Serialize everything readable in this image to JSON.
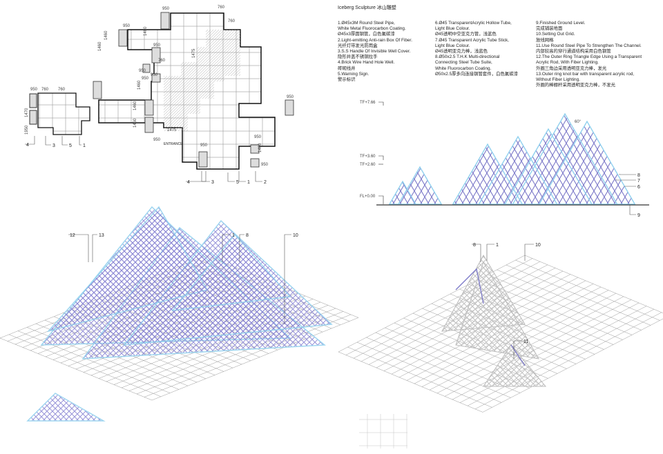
{
  "title": "Iceberg Sculpture  冰山雕塑",
  "legend_columns": [
    [
      "1.Ø45x3M Round Steel Pipe,",
      "White Metal Fluorocarbon Coating.",
      "Ø45x3厚圆钢管，白色氟碳漆",
      "2.Light-emitting Anti-rain Box Of Fiber.",
      "光纤灯带发光防雨盒",
      "3.S.S Handle Of Invisible Well Cover.",
      "隐形井盖不锈钢拉手",
      "4.Brick Wire Hand Hole Well.",
      "砖砌线井",
      "5.Warning Sign.",
      "警示标识"
    ],
    [
      "6.Ø45 TransparentAcrylic Hollow Tube,",
      "Light Blue Colour.",
      "Ø45透明中空亚克力管，浅蓝色",
      "7.Ø45 Transparent Acrylic Tube Stick,",
      "Light Blue Colour.",
      "Ø45透明亚克力棒，浅蓝色",
      "8.Ø50x2.5 T.H.K Multi-directional",
      "Connecting Steel Tube Suite,",
      "White Fluorocarbon Coating.",
      "Ø50x2.5厚多向连接钢管套件，白色氟碳漆"
    ],
    [
      "9.Finished Ground Level.",
      "完成铺装地面",
      "10.Setting Out Grid.",
      "放线网格",
      "11.Use Round Steel Pipe To Strengthen The Channel.",
      "内部较高的穿行通道结构采用白色钢管",
      "12.The Outer Ring Triangle Edge Using a Transparent",
      "Acrylic Rod, With Fiber Lighting.",
      "外圈三角边采用透明亚克力棒，发光",
      "13.Outer ring knot bar with transparent acrylic rod,",
      "Without Fiber Lighting.",
      "外圈的棒棚杆采用透明亚克力棒，不发光"
    ]
  ],
  "levels": [
    "TF+7.66",
    "TF+3.60",
    "TF+2.60",
    "FL+0.00"
  ],
  "elevation_tags": [
    "8",
    "7",
    "6",
    "9"
  ],
  "angle_label": "60°",
  "plan": {
    "entrance": "ENTRANCE",
    "dims": [
      "950",
      "760",
      "760",
      "1460",
      "950",
      "1460",
      "950",
      "760",
      "950",
      "1460",
      "950",
      "1460",
      "1460",
      "1400",
      "950",
      "1475",
      "1475",
      "950",
      "950",
      "950",
      "1460",
      "950",
      "950"
    ],
    "tags": [
      "4",
      "3",
      "5",
      "1",
      "2"
    ],
    "small_dims": [
      "950",
      "760",
      "760",
      "1470",
      "1950"
    ],
    "small_tags": [
      "4",
      "3",
      "5",
      "1"
    ]
  },
  "iso_left_tags": [
    "12",
    "13",
    "1",
    "8",
    "10"
  ],
  "iso_right_tags": [
    "8",
    "1",
    "10",
    "11"
  ],
  "colors": {
    "light_blue": "#8fd0ee",
    "purple": "#7b78c8",
    "grey": "#c8c8c8",
    "line": "#222222"
  }
}
